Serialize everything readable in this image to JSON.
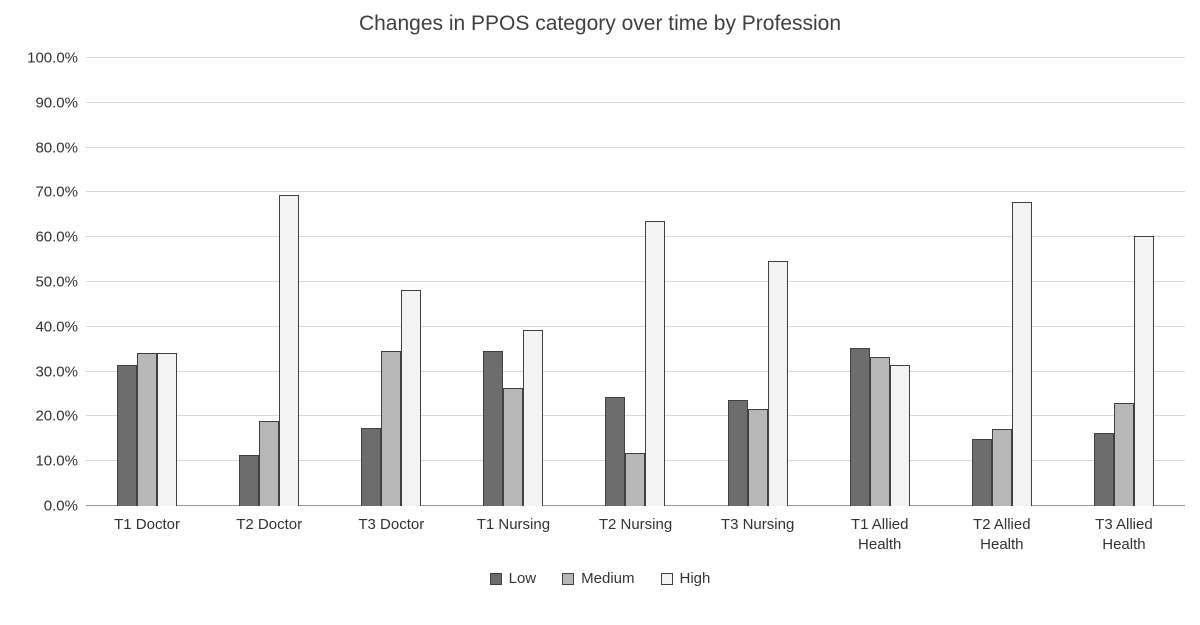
{
  "chart_data": {
    "type": "bar",
    "title": "Changes in PPOS category over time by Profession",
    "categories": [
      "T1 Doctor",
      "T2 Doctor",
      "T3 Doctor",
      "T1 Nursing",
      "T2 Nursing",
      "T3 Nursing",
      "T1 Allied Health",
      "T2 Allied Health",
      "T3 Allied Health"
    ],
    "series": [
      {
        "name": "Low",
        "color": "#6d6d6d",
        "values": [
          31.5,
          11.4,
          17.4,
          34.6,
          24.3,
          23.7,
          35.3,
          15.0,
          16.4
        ]
      },
      {
        "name": "Medium",
        "color": "#b7b7b7",
        "values": [
          34.2,
          19.0,
          34.6,
          26.3,
          11.8,
          21.6,
          33.3,
          17.2,
          22.9
        ]
      },
      {
        "name": "High",
        "color": "#f3f3f3",
        "values": [
          34.2,
          69.5,
          48.2,
          39.2,
          63.7,
          54.6,
          31.4,
          67.8,
          60.2
        ]
      }
    ],
    "ylim": [
      0,
      100
    ],
    "ytick_step": 10,
    "ytick_labels": [
      "0.0%",
      "10.0%",
      "20.0%",
      "30.0%",
      "40.0%",
      "50.0%",
      "60.0%",
      "70.0%",
      "80.0%",
      "90.0%",
      "100.0%"
    ],
    "grid": true,
    "legend_position": "bottom",
    "bar_border_color": "#404040",
    "gridline_color": "#d9d9d9",
    "axis_line_color": "#999999"
  }
}
